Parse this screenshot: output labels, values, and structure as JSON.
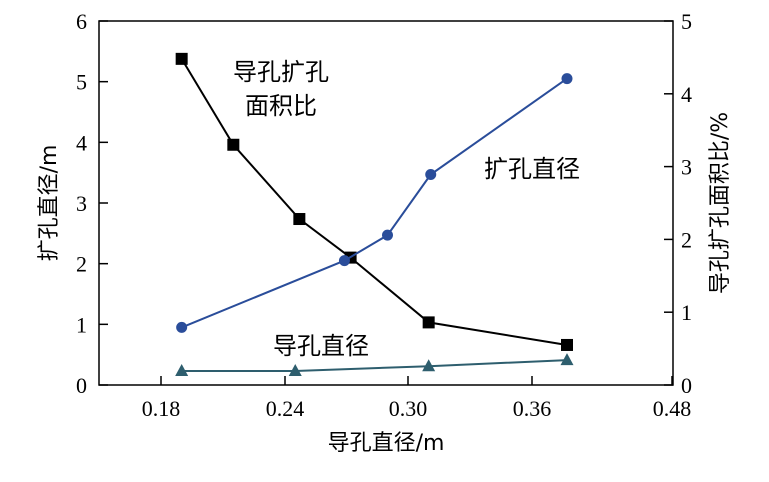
{
  "chart_data": {
    "type": "line",
    "xlabel": "导孔直径/m",
    "ylabel_left": "扩孔直径/m",
    "ylabel_right": "导孔扩孔面积比/%",
    "x_ticks": [
      "0.18",
      "0.24",
      "0.30",
      "0.36",
      "0.48"
    ],
    "y_left_ticks": [
      "0",
      "1",
      "2",
      "3",
      "4",
      "5",
      "6"
    ],
    "y_right_ticks": [
      "0",
      "1",
      "2",
      "3",
      "4",
      "5"
    ],
    "ylim_left": [
      0,
      6
    ],
    "ylim_right": [
      0,
      5
    ],
    "grid": false,
    "series": [
      {
        "name": "导孔扩孔面积比",
        "axis": "right",
        "marker": "square",
        "color": "#000000",
        "x": [
          0.19,
          0.215,
          0.247,
          0.272,
          0.31,
          0.39
        ],
        "y": [
          4.48,
          3.3,
          2.28,
          1.75,
          0.86,
          0.55
        ]
      },
      {
        "name": "扩孔直径",
        "axis": "left",
        "marker": "circle",
        "color": "#2a4d9a",
        "x": [
          0.19,
          0.269,
          0.29,
          0.311,
          0.39
        ],
        "y": [
          0.95,
          2.05,
          2.47,
          3.47,
          5.05
        ]
      },
      {
        "name": "导孔直径",
        "axis": "left",
        "marker": "triangle",
        "color": "#2e5e6e",
        "x": [
          0.19,
          0.245,
          0.31,
          0.39
        ],
        "y": [
          0.23,
          0.23,
          0.31,
          0.41
        ]
      }
    ],
    "annotations": [
      {
        "text": "导孔扩孔",
        "series": 0
      },
      {
        "text": "面积比",
        "series": 0
      },
      {
        "text": "扩孔直径",
        "series": 1
      },
      {
        "text": "导孔直径",
        "series": 2
      }
    ]
  }
}
